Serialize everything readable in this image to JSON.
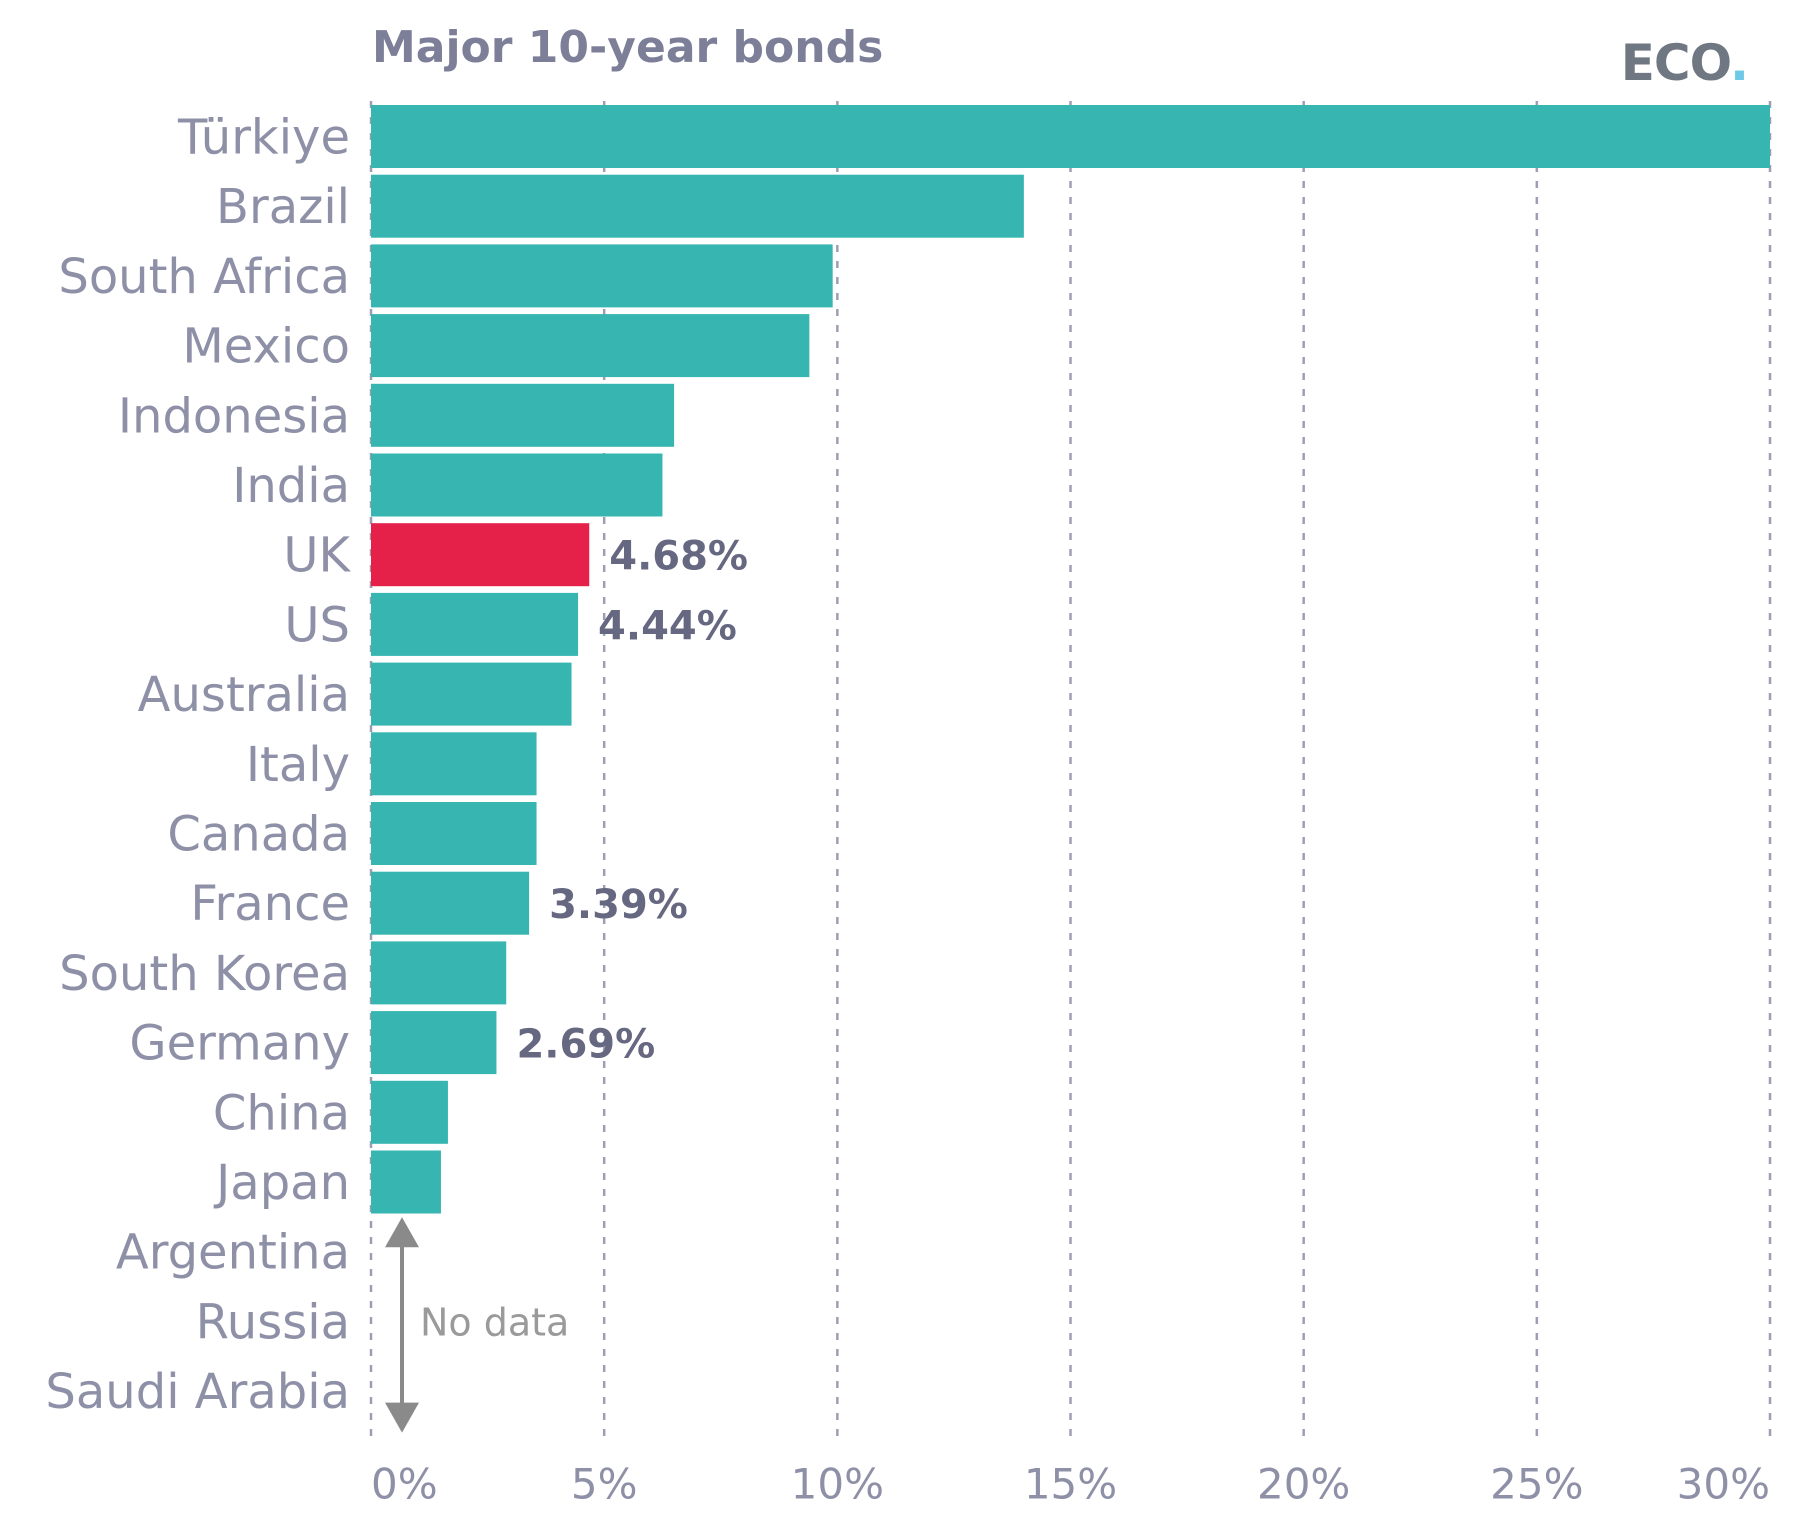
{
  "header": {
    "title": "Major 10-year bonds",
    "logo_text": "ECO",
    "logo_dot": "."
  },
  "colors": {
    "bar": "#37b5b1",
    "highlight": "#e5214a",
    "grid": "#9c9fb3",
    "arrow": "#8a8a8a"
  },
  "chart_data": {
    "type": "bar",
    "orientation": "horizontal",
    "title": "Major 10-year bonds",
    "categories": [
      "Türkiye",
      "Brazil",
      "South Africa",
      "Mexico",
      "Indonesia",
      "India",
      "UK",
      "US",
      "Australia",
      "Italy",
      "Canada",
      "France",
      "South Korea",
      "Germany",
      "China",
      "Japan",
      "Argentina",
      "Russia",
      "Saudi Arabia"
    ],
    "values": [
      30.0,
      14.0,
      9.9,
      9.4,
      6.5,
      6.25,
      4.68,
      4.44,
      4.3,
      3.55,
      3.55,
      3.39,
      2.9,
      2.69,
      1.65,
      1.5,
      null,
      null,
      null
    ],
    "highlight": [
      "UK"
    ],
    "data_labels": [
      {
        "category": "UK",
        "text": "4.68%"
      },
      {
        "category": "US",
        "text": "4.44%"
      },
      {
        "category": "France",
        "text": "3.39%"
      },
      {
        "category": "Germany",
        "text": "2.69%"
      }
    ],
    "xlim": [
      0,
      30
    ],
    "xticks": [
      0,
      5,
      10,
      15,
      20,
      25,
      30
    ],
    "xtick_labels": [
      "0%",
      "5%",
      "10%",
      "15%",
      "20%",
      "25%",
      "30%"
    ],
    "grid": true,
    "annotation": {
      "text": "No data",
      "categories": [
        "Argentina",
        "Russia",
        "Saudi Arabia"
      ]
    }
  }
}
